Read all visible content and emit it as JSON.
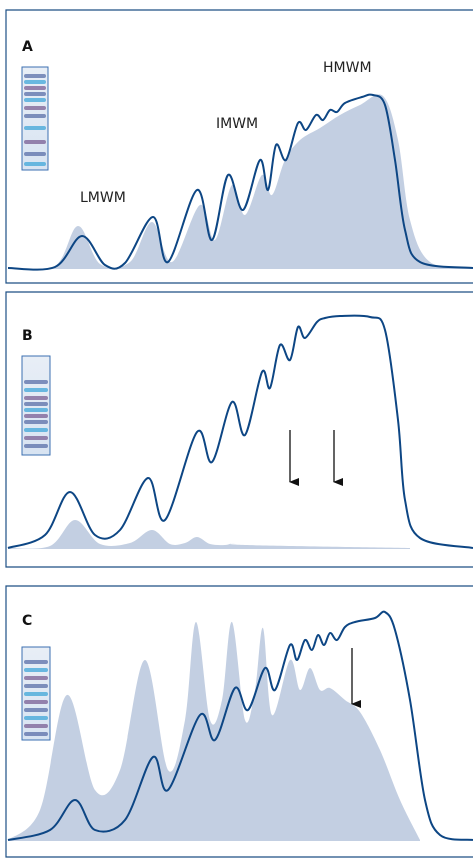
{
  "panels": [
    {
      "label": "A",
      "annotations": [
        "LMWM",
        "IMWM",
        "HMWM"
      ]
    },
    {
      "label": "B"
    },
    {
      "label": "C"
    }
  ]
}
